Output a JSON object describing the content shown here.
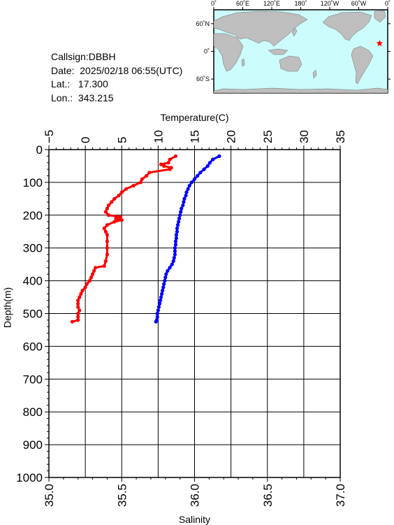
{
  "station": {
    "callsign_label": "Callsign:",
    "callsign": "DBBH",
    "date_label": "Date:",
    "date": "2025/02/18 06:55(UTC)",
    "lat_label": "Lat.:",
    "lat": "17.300",
    "lon_label": "Lon.:",
    "lon": "343.215"
  },
  "map": {
    "top_labels": [
      "0˚",
      "60˚E",
      "120˚E",
      "180˚",
      "120˚W",
      "60˚W",
      "0˚"
    ],
    "side_labels": [
      "60˚N",
      "0˚",
      "60˚S"
    ],
    "ocean_color": "#ccfcfc",
    "land_color": "#bebebe",
    "marker_color": "#ff0000",
    "marker_lon": 343.215,
    "marker_lat": 17.3
  },
  "chart_data": {
    "type": "scatter",
    "ylabel": "Depth(m)",
    "ylim": [
      0,
      1000
    ],
    "y_inverted": true,
    "yticks": [
      "0",
      "100",
      "200",
      "300",
      "400",
      "500",
      "600",
      "700",
      "800",
      "900",
      "1000"
    ],
    "grid": true,
    "temperature_axis": {
      "label": "Temperature(C)",
      "position": "top",
      "range": [
        -5,
        35
      ],
      "ticks": [
        "−5",
        "0",
        "5",
        "10",
        "15",
        "20",
        "25",
        "30",
        "35"
      ]
    },
    "salinity_axis": {
      "label": "Salinity",
      "position": "bottom",
      "range": [
        35.0,
        37.0
      ],
      "ticks": [
        "35.0",
        "35.5",
        "36.0",
        "36.5",
        "37.0"
      ]
    },
    "series": [
      {
        "variable": "temperature",
        "axis": "top",
        "color": "#0000ff",
        "depth": [
          20,
          30,
          40,
          50,
          60,
          70,
          80,
          90,
          100,
          110,
          120,
          130,
          140,
          150,
          160,
          170,
          180,
          190,
          200,
          210,
          220,
          230,
          240,
          250,
          260,
          270,
          280,
          290,
          300,
          310,
          320,
          330,
          340,
          350,
          360,
          370,
          380,
          390,
          400,
          410,
          420,
          430,
          440,
          450,
          460,
          470,
          480,
          490,
          500,
          510,
          520,
          525
        ],
        "values": [
          18.4,
          17.5,
          17.1,
          16.8,
          16.3,
          15.8,
          15.4,
          15.0,
          14.6,
          14.3,
          14.1,
          13.9,
          13.8,
          13.6,
          13.5,
          13.4,
          13.2,
          13.1,
          13.0,
          12.9,
          12.8,
          12.7,
          12.6,
          12.6,
          12.5,
          12.5,
          12.4,
          12.4,
          12.3,
          12.3,
          12.3,
          12.2,
          12.1,
          11.9,
          11.6,
          11.3,
          11.1,
          11.0,
          10.9,
          10.8,
          10.7,
          10.6,
          10.5,
          10.4,
          10.3,
          10.2,
          10.1,
          10.0,
          9.9,
          9.9,
          9.8,
          9.7
        ]
      },
      {
        "variable": "salinity",
        "axis": "bottom",
        "color": "#ff0000",
        "depth": [
          20,
          30,
          40,
          45,
          50,
          55,
          60,
          70,
          80,
          90,
          100,
          110,
          120,
          130,
          140,
          150,
          160,
          170,
          180,
          190,
          200,
          205,
          210,
          215,
          220,
          230,
          240,
          250,
          260,
          280,
          300,
          320,
          340,
          355,
          360,
          370,
          380,
          390,
          400,
          410,
          420,
          430,
          440,
          450,
          460,
          470,
          480,
          490,
          500,
          510,
          520,
          525
        ],
        "values": [
          35.87,
          35.83,
          35.82,
          35.77,
          35.79,
          35.84,
          35.83,
          35.69,
          35.67,
          35.64,
          35.63,
          35.58,
          35.53,
          35.5,
          35.48,
          35.45,
          35.43,
          35.41,
          35.4,
          35.39,
          35.41,
          35.49,
          35.46,
          35.5,
          35.45,
          35.4,
          35.38,
          35.39,
          35.4,
          35.4,
          35.4,
          35.4,
          35.39,
          35.38,
          35.32,
          35.31,
          35.3,
          35.29,
          35.28,
          35.26,
          35.25,
          35.23,
          35.22,
          35.21,
          35.2,
          35.2,
          35.2,
          35.21,
          35.2,
          35.2,
          35.2,
          35.16
        ]
      }
    ]
  }
}
